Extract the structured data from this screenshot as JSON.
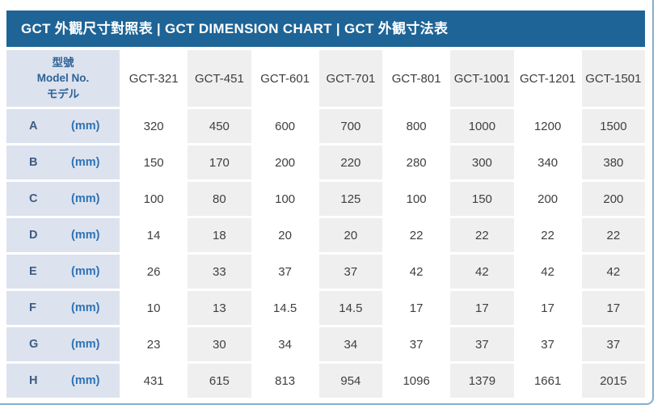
{
  "title_bar": {
    "text": "GCT 外觀尺寸對照表 | GCT DIMENSION CHART | GCT 外観寸法表"
  },
  "table_header": {
    "model_zh": "型號",
    "model_en": "Model No.",
    "model_ja": "モデル"
  },
  "chart_data": {
    "type": "table",
    "title": "GCT 外觀尺寸對照表 | GCT DIMENSION CHART | GCT 外観寸法表",
    "columns": [
      "GCT-321",
      "GCT-451",
      "GCT-601",
      "GCT-701",
      "GCT-801",
      "GCT-1001",
      "GCT-1201",
      "GCT-1501"
    ],
    "unit": "(mm)",
    "rows": [
      {
        "label": "A",
        "unit": "(mm)",
        "values": [
          320,
          450,
          600,
          700,
          800,
          1000,
          1200,
          1500
        ]
      },
      {
        "label": "B",
        "unit": "(mm)",
        "values": [
          150,
          170,
          200,
          220,
          280,
          300,
          340,
          380
        ]
      },
      {
        "label": "C",
        "unit": "(mm)",
        "values": [
          100,
          80,
          100,
          125,
          100,
          150,
          200,
          200
        ]
      },
      {
        "label": "D",
        "unit": "(mm)",
        "values": [
          14,
          18,
          20,
          20,
          22,
          22,
          22,
          22
        ]
      },
      {
        "label": "E",
        "unit": "(mm)",
        "values": [
          26,
          33,
          37,
          37,
          42,
          42,
          42,
          42
        ]
      },
      {
        "label": "F",
        "unit": "(mm)",
        "values": [
          10,
          13,
          14.5,
          14.5,
          17,
          17,
          17,
          17
        ]
      },
      {
        "label": "G",
        "unit": "(mm)",
        "values": [
          23,
          30,
          34,
          34,
          37,
          37,
          37,
          37
        ]
      },
      {
        "label": "H",
        "unit": "(mm)",
        "values": [
          431,
          615,
          813,
          954,
          1096,
          1379,
          1661,
          2015
        ]
      }
    ]
  },
  "colors": {
    "title_bar_bg": "#1e6496",
    "title_text": "#ffffff",
    "label_cell_bg": "#dce3ef",
    "alt_column_bg": "#efefef",
    "card_border": "#86aecd",
    "label_letter_text": "#3f5a85",
    "unit_text": "#2e72b4",
    "model_header_text": "#2f6295",
    "value_text": "#3f3f3f"
  }
}
